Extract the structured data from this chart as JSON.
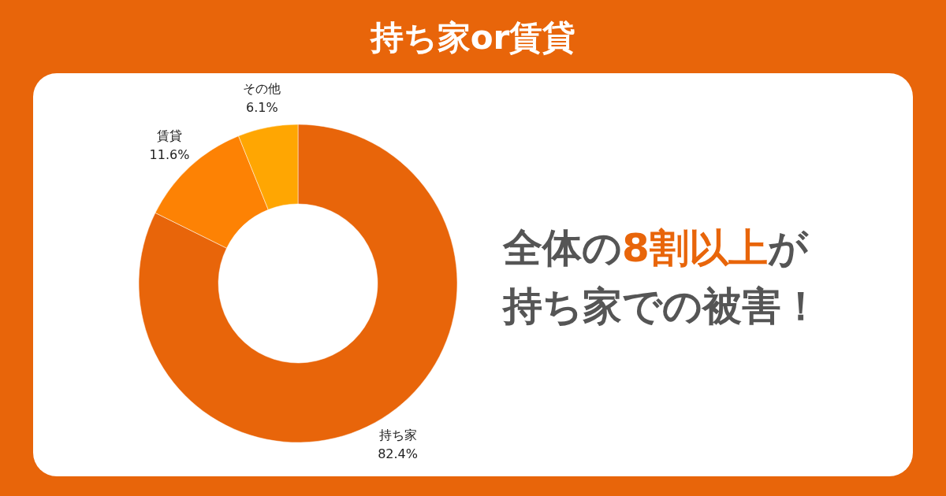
{
  "chart_data": {
    "type": "donut",
    "title": "持ち家or賃貸",
    "categories": [
      "持ち家",
      "賃貸",
      "その他"
    ],
    "values": [
      82.4,
      11.6,
      6.1
    ],
    "colors": [
      "#e8650a",
      "#fd8204",
      "#ffa602"
    ],
    "value_labels": [
      "82.4%",
      "11.6%",
      "6.1%"
    ],
    "annotations": [
      "全体の",
      "8割以上",
      "が",
      "持ち家での被害！"
    ]
  }
}
